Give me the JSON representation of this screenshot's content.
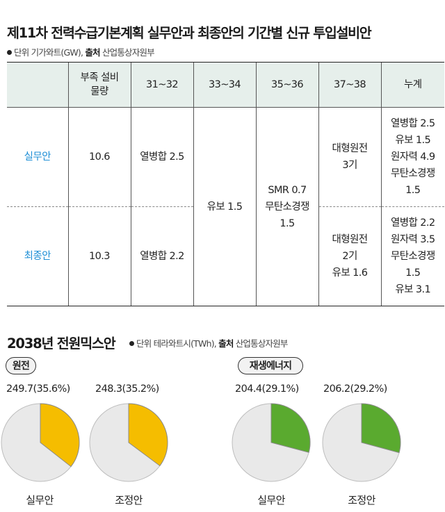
{
  "title": "제11차 전력수급기본계획 실무안과 최종안의 기간별 신규 투입설비안",
  "table_meta": {
    "unit_label": "단위",
    "unit": "기가와트(GW),",
    "source_label": "출처",
    "source": "산업통상자원부"
  },
  "table": {
    "headers": [
      "",
      "부족 설비\n물량",
      "31~32",
      "33~34",
      "35~36",
      "37~38",
      "누계"
    ],
    "rows": [
      {
        "label": "실무안",
        "shortage": "10.6",
        "p31_32": "열병합 2.5",
        "p37_38": "대형원전\n3기",
        "total": "열병합 2.5\n유보 1.5\n원자력 4.9\n무탄소경쟁\n1.5"
      },
      {
        "label": "최종안",
        "shortage": "10.3",
        "p31_32": "열병합 2.2",
        "p37_38": "대형원전\n2기\n유보 1.6",
        "total": "열병합 2.2\n원자력 3.5\n무탄소경쟁\n1.5\n유보 3.1"
      }
    ],
    "shared": {
      "p33_34": "유보 1.5",
      "p35_36": "SMR 0.7\n무탄소경쟁\n1.5"
    }
  },
  "mix_title": "2038년 전원믹스안",
  "mix_meta": {
    "unit_label": "단위",
    "unit": "테라와트시(TWh),",
    "source_label": "출처",
    "source": "산업통상자원부"
  },
  "groups": {
    "nuclear": "원전",
    "renewable": "재생에너지"
  },
  "chart_data": {
    "type": "pie",
    "title": "2038년 전원믹스안",
    "colors": {
      "nuclear": "#f5bd00",
      "renewable": "#5aaa2f",
      "rest": "#e9e9e9"
    },
    "pies": [
      {
        "group": "원전",
        "plan": "실무안",
        "value": 249.7,
        "share": 35.6,
        "label": "249.7(35.6%)"
      },
      {
        "group": "원전",
        "plan": "조정안",
        "value": 248.3,
        "share": 35.2,
        "label": "248.3(35.2%)"
      },
      {
        "group": "재생에너지",
        "plan": "실무안",
        "value": 204.4,
        "share": 29.1,
        "label": "204.4(29.1%)"
      },
      {
        "group": "재생에너지",
        "plan": "조정안",
        "value": 206.2,
        "share": 29.2,
        "label": "206.2(29.2%)"
      }
    ]
  }
}
